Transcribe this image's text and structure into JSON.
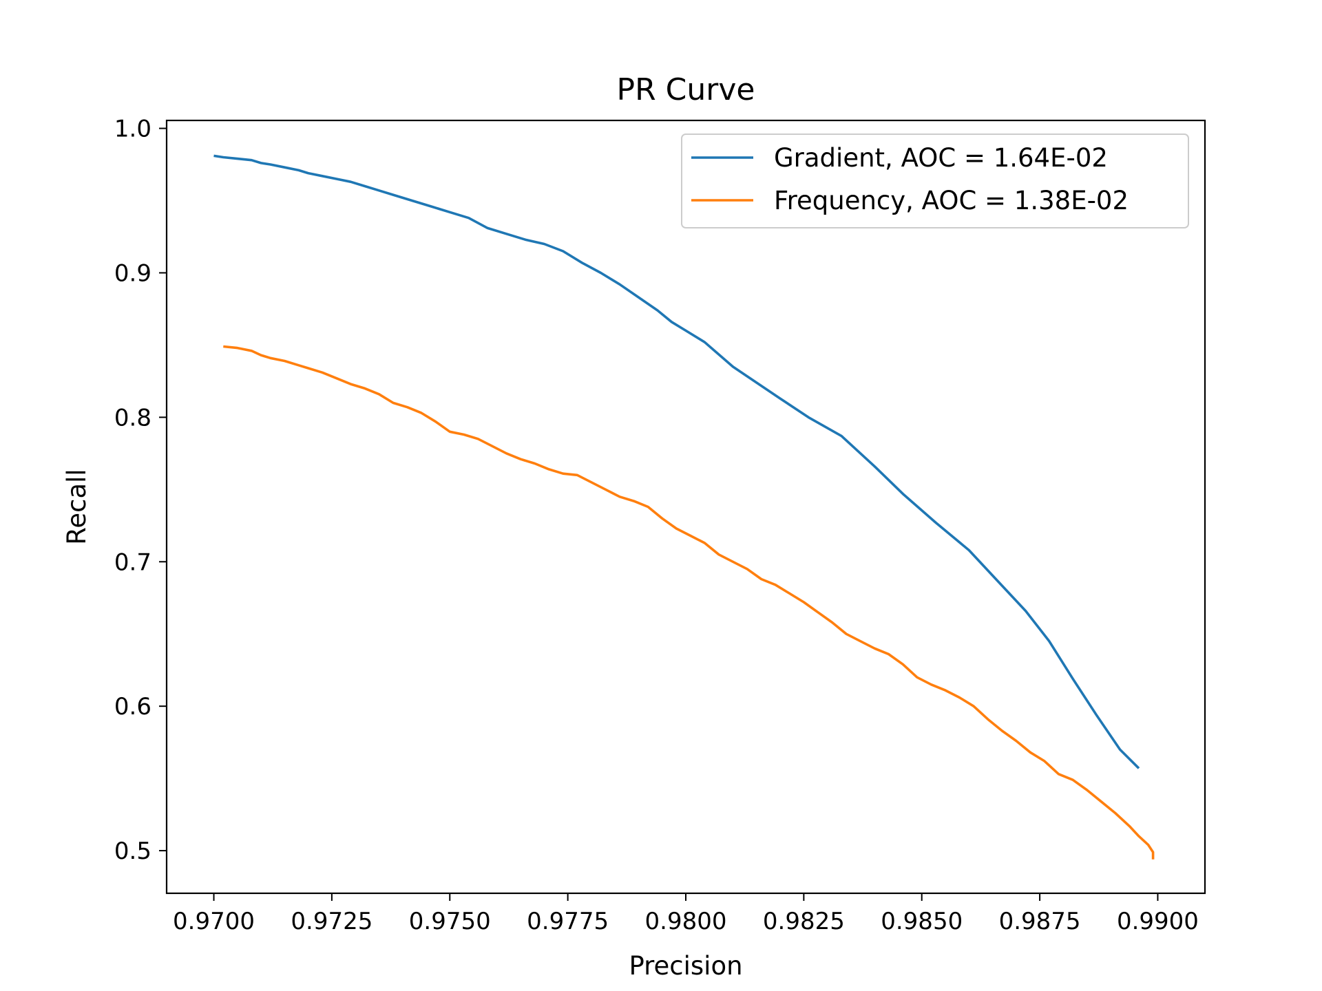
{
  "chart_data": {
    "type": "line",
    "title": "PR Curve",
    "xlabel": "Precision",
    "ylabel": "Recall",
    "xlim": [
      0.969,
      0.991
    ],
    "ylim": [
      0.4705,
      1.0055
    ],
    "xticks": [
      0.97,
      0.9725,
      0.975,
      0.9775,
      0.98,
      0.9825,
      0.985,
      0.9875,
      0.99
    ],
    "xtick_labels": [
      "0.9700",
      "0.9725",
      "0.9750",
      "0.9775",
      "0.9800",
      "0.9825",
      "0.9850",
      "0.9875",
      "0.9900"
    ],
    "yticks": [
      0.5,
      0.6,
      0.7,
      0.8,
      0.9,
      1.0
    ],
    "ytick_labels": [
      "0.5",
      "0.6",
      "0.7",
      "0.8",
      "0.9",
      "1.0"
    ],
    "grid": false,
    "legend_position": "top-right",
    "series": [
      {
        "name": "Gradient, AOC = 1.64E-02",
        "color": "#1f77b4",
        "x": [
          0.97,
          0.9702,
          0.9705,
          0.9708,
          0.971,
          0.9712,
          0.9715,
          0.9718,
          0.972,
          0.9723,
          0.9726,
          0.9729,
          0.9732,
          0.9735,
          0.9738,
          0.9742,
          0.9746,
          0.975,
          0.9754,
          0.9758,
          0.9762,
          0.9766,
          0.977,
          0.9774,
          0.9778,
          0.9782,
          0.9786,
          0.979,
          0.9794,
          0.9797,
          0.98,
          0.9804,
          0.981,
          0.9815,
          0.982,
          0.9826,
          0.9833,
          0.984,
          0.9846,
          0.9853,
          0.986,
          0.9866,
          0.9872,
          0.9877,
          0.9882,
          0.9887,
          0.9892,
          0.9896
        ],
        "y": [
          0.981,
          0.98,
          0.979,
          0.978,
          0.976,
          0.975,
          0.973,
          0.971,
          0.969,
          0.967,
          0.965,
          0.963,
          0.96,
          0.957,
          0.954,
          0.95,
          0.946,
          0.942,
          0.938,
          0.931,
          0.927,
          0.923,
          0.92,
          0.915,
          0.907,
          0.9,
          0.892,
          0.883,
          0.874,
          0.866,
          0.86,
          0.852,
          0.835,
          0.824,
          0.813,
          0.8,
          0.787,
          0.766,
          0.747,
          0.727,
          0.708,
          0.687,
          0.666,
          0.645,
          0.619,
          0.594,
          0.57,
          0.557
        ]
      },
      {
        "name": "Frequency, AOC = 1.38E-02",
        "color": "#ff7f0e",
        "x": [
          0.9702,
          0.9705,
          0.9708,
          0.971,
          0.9712,
          0.9715,
          0.9718,
          0.972,
          0.9723,
          0.9726,
          0.9729,
          0.9732,
          0.9735,
          0.9738,
          0.9741,
          0.9744,
          0.9747,
          0.975,
          0.9753,
          0.9756,
          0.9759,
          0.9762,
          0.9765,
          0.9768,
          0.9771,
          0.9774,
          0.9777,
          0.978,
          0.9783,
          0.9786,
          0.9789,
          0.9792,
          0.9795,
          0.9798,
          0.9801,
          0.9804,
          0.9807,
          0.981,
          0.9813,
          0.9816,
          0.9819,
          0.9822,
          0.9825,
          0.9828,
          0.9831,
          0.9834,
          0.9837,
          0.984,
          0.9843,
          0.9846,
          0.9849,
          0.9852,
          0.9855,
          0.9858,
          0.9861,
          0.9864,
          0.9867,
          0.987,
          0.9873,
          0.9876,
          0.9879,
          0.9882,
          0.9885,
          0.9888,
          0.9891,
          0.9894,
          0.9896,
          0.9898,
          0.9899,
          0.9899
        ],
        "y": [
          0.849,
          0.848,
          0.846,
          0.843,
          0.841,
          0.839,
          0.836,
          0.834,
          0.831,
          0.827,
          0.823,
          0.82,
          0.816,
          0.81,
          0.807,
          0.803,
          0.797,
          0.79,
          0.788,
          0.785,
          0.78,
          0.775,
          0.771,
          0.768,
          0.764,
          0.761,
          0.76,
          0.755,
          0.75,
          0.745,
          0.742,
          0.738,
          0.73,
          0.723,
          0.718,
          0.713,
          0.705,
          0.7,
          0.695,
          0.688,
          0.684,
          0.678,
          0.672,
          0.665,
          0.658,
          0.65,
          0.645,
          0.64,
          0.636,
          0.629,
          0.62,
          0.615,
          0.611,
          0.606,
          0.6,
          0.591,
          0.583,
          0.576,
          0.568,
          0.562,
          0.553,
          0.549,
          0.542,
          0.534,
          0.526,
          0.517,
          0.51,
          0.504,
          0.499,
          0.494
        ]
      }
    ]
  }
}
